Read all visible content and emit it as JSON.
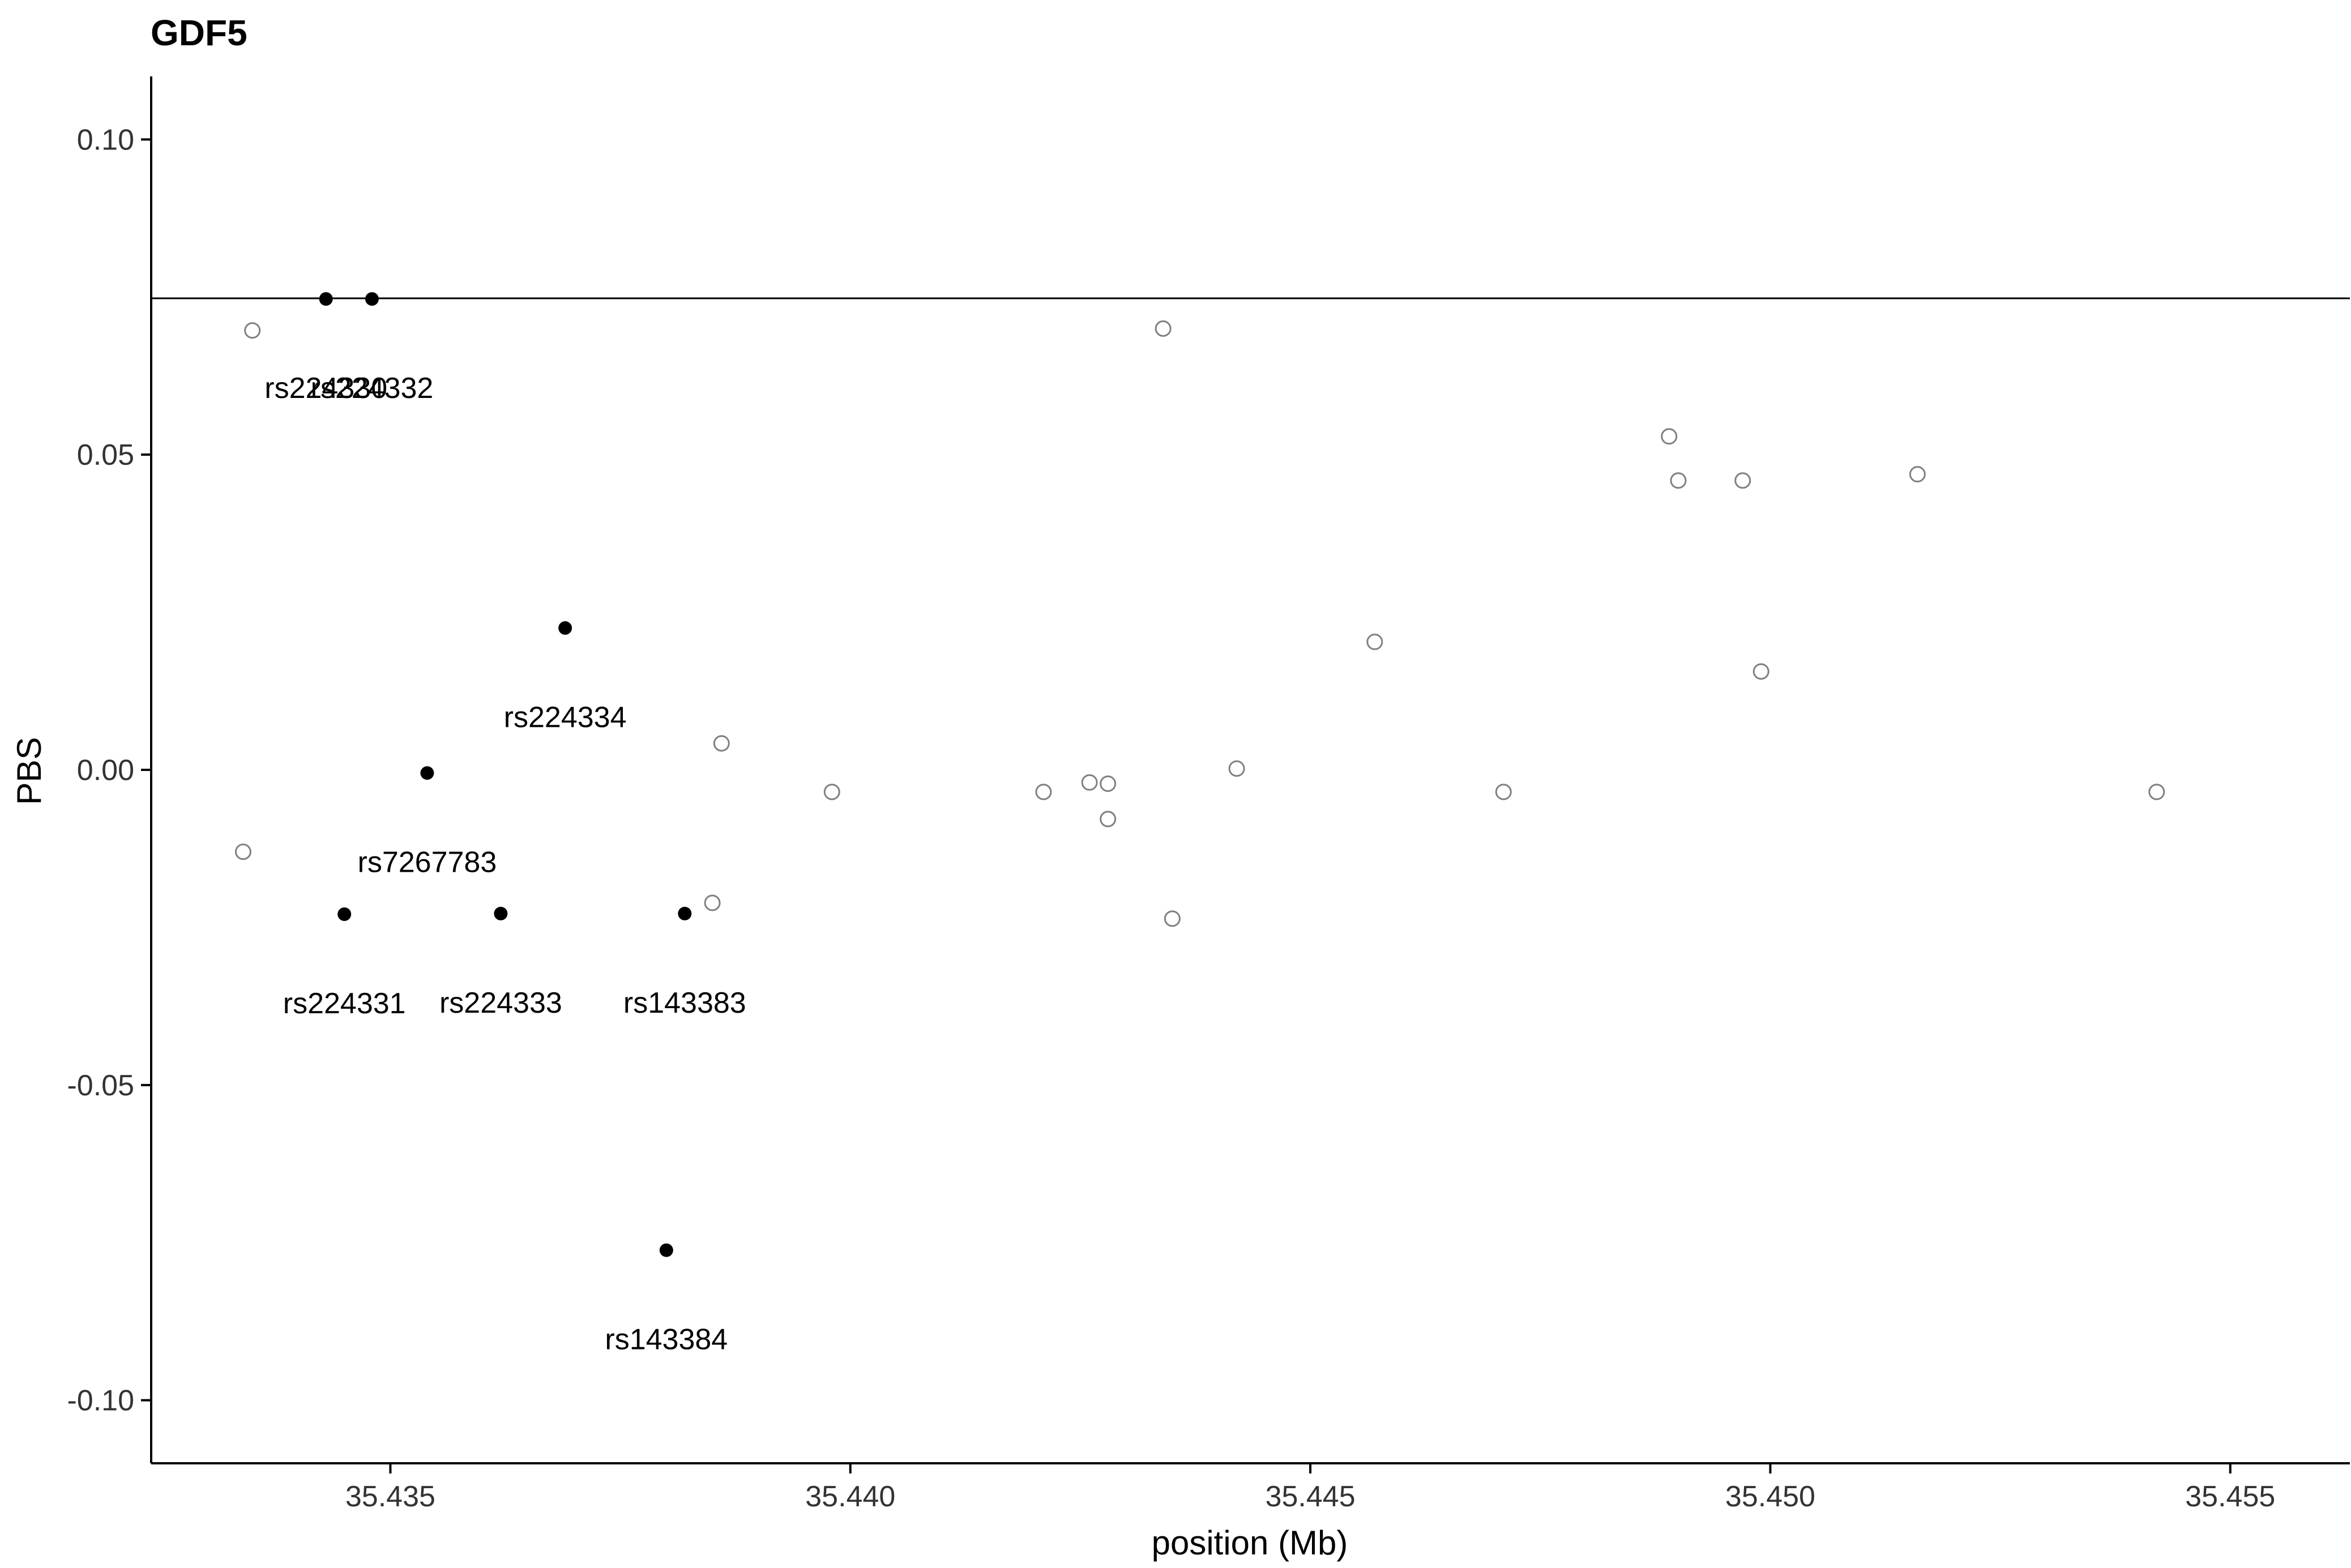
{
  "chart_data": {
    "type": "scatter",
    "title": "GDF5",
    "xlabel": "position (Mb)",
    "ylabel": "PBS",
    "xlim": [
      35.4324,
      35.4563
    ],
    "ylim": [
      -0.11,
      0.11
    ],
    "x_ticks": [
      35.435,
      35.44,
      35.445,
      35.45,
      35.455
    ],
    "x_tick_labels": [
      "35.435",
      "35.440",
      "35.445",
      "35.450",
      "35.455"
    ],
    "y_ticks": [
      0.1,
      0.05,
      0.0,
      -0.05,
      -0.1
    ],
    "y_tick_labels": [
      "0.10",
      "0.05",
      "0.00",
      "-0.05",
      "-0.10"
    ],
    "hline": {
      "y": 0.0748
    },
    "grid": false,
    "legend": "none",
    "colors": {
      "filled_point": "#000000",
      "open_point_stroke": "#808080",
      "axis": "#000000",
      "text": "#000000"
    },
    "series": [
      {
        "marker": "filled-circle",
        "points": [
          {
            "x": 35.4343,
            "y": 0.0747,
            "label": "rs224330"
          },
          {
            "x": 35.4348,
            "y": 0.0747,
            "label": "rs224332"
          },
          {
            "x": 35.4369,
            "y": 0.0225,
            "label": "rs224334"
          },
          {
            "x": 35.4354,
            "y": -0.0005,
            "label": "rs7267783"
          },
          {
            "x": 35.4345,
            "y": -0.0229,
            "label": "rs224331"
          },
          {
            "x": 35.4362,
            "y": -0.0228,
            "label": "rs224333"
          },
          {
            "x": 35.4382,
            "y": -0.0228,
            "label": "rs143383"
          },
          {
            "x": 35.438,
            "y": -0.0762,
            "label": "rs143384"
          }
        ]
      },
      {
        "marker": "open-circle",
        "points": [
          {
            "x": 35.4335,
            "y": 0.0697
          },
          {
            "x": 35.4434,
            "y": 0.07
          },
          {
            "x": 35.4489,
            "y": 0.0529
          },
          {
            "x": 35.449,
            "y": 0.0459
          },
          {
            "x": 35.4497,
            "y": 0.0459
          },
          {
            "x": 35.4516,
            "y": 0.0469
          },
          {
            "x": 35.4457,
            "y": 0.0203
          },
          {
            "x": 35.4499,
            "y": 0.0156
          },
          {
            "x": 35.4386,
            "y": 0.0042
          },
          {
            "x": 35.4442,
            "y": 0.0002
          },
          {
            "x": 35.4398,
            "y": -0.0035
          },
          {
            "x": 35.4421,
            "y": -0.0035
          },
          {
            "x": 35.4426,
            "y": -0.002
          },
          {
            "x": 35.4428,
            "y": -0.0022
          },
          {
            "x": 35.4428,
            "y": -0.0078
          },
          {
            "x": 35.4471,
            "y": -0.0035
          },
          {
            "x": 35.4542,
            "y": -0.0035
          },
          {
            "x": 35.4334,
            "y": -0.013
          },
          {
            "x": 35.4385,
            "y": -0.0211
          },
          {
            "x": 35.4435,
            "y": -0.0236
          }
        ]
      }
    ]
  }
}
